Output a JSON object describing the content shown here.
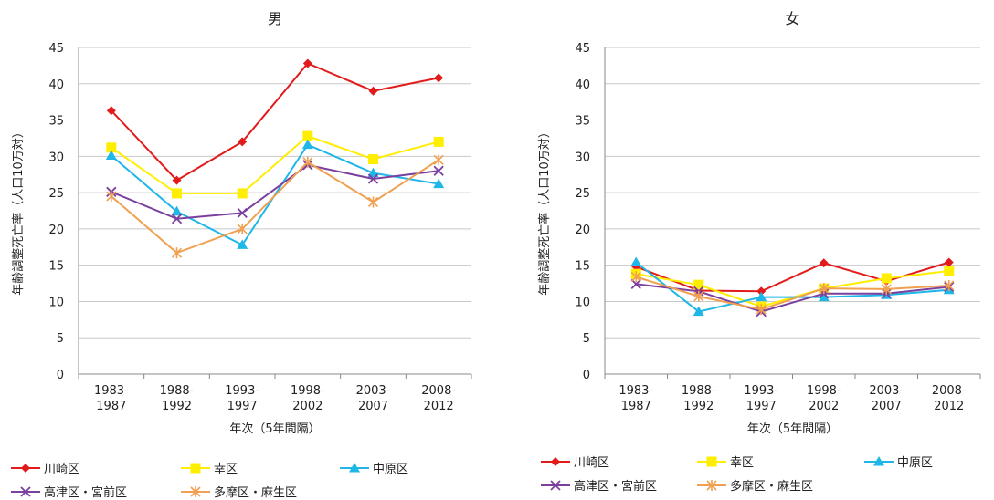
{
  "chart_data": [
    {
      "type": "line",
      "title": "男",
      "xlabel": "年次（5年間隔）",
      "ylabel": "年齢調整死亡率（人口10万対）",
      "categories": [
        [
          "1983-",
          "1987"
        ],
        [
          "1988-",
          "1992"
        ],
        [
          "1993-",
          "1997"
        ],
        [
          "1998-",
          "2002"
        ],
        [
          "2003-",
          "2007"
        ],
        [
          "2008-",
          "2012"
        ]
      ],
      "ylim": [
        0,
        45
      ],
      "yticks": [
        0,
        5,
        10,
        15,
        20,
        25,
        30,
        35,
        40,
        45
      ],
      "grid": true,
      "legend_position": "bottom",
      "series": [
        {
          "name": "川崎区",
          "color": "#e31a1c",
          "marker": "diamond",
          "values": [
            36.3,
            26.7,
            32.0,
            42.8,
            39.0,
            40.8
          ]
        },
        {
          "name": "幸区",
          "color": "#ffee00",
          "marker": "square",
          "values": [
            31.2,
            24.9,
            24.9,
            32.8,
            29.6,
            32.0
          ]
        },
        {
          "name": "中原区",
          "color": "#1fb6e8",
          "marker": "triangle",
          "values": [
            30.1,
            22.4,
            17.8,
            31.6,
            27.7,
            26.2
          ]
        },
        {
          "name": "高津区・宮前区",
          "color": "#7b3f9e",
          "marker": "x",
          "values": [
            25.1,
            21.4,
            22.2,
            28.8,
            26.9,
            28.0
          ]
        },
        {
          "name": "多摩区・麻生区",
          "color": "#f0a050",
          "marker": "star",
          "values": [
            24.5,
            16.7,
            20.0,
            29.2,
            23.7,
            29.5
          ]
        }
      ]
    },
    {
      "type": "line",
      "title": "女",
      "xlabel": "年次（5年間隔）",
      "ylabel": "年齢調整死亡率（人口10万対）",
      "categories": [
        [
          "1983-",
          "1987"
        ],
        [
          "1988-",
          "1992"
        ],
        [
          "1993-",
          "1997"
        ],
        [
          "1998-",
          "2002"
        ],
        [
          "2003-",
          "2007"
        ],
        [
          "2008-",
          "2012"
        ]
      ],
      "ylim": [
        0,
        45
      ],
      "yticks": [
        0,
        5,
        10,
        15,
        20,
        25,
        30,
        35,
        40,
        45
      ],
      "grid": true,
      "legend_position": "bottom",
      "series": [
        {
          "name": "川崎区",
          "color": "#e31a1c",
          "marker": "diamond",
          "values": [
            14.8,
            11.5,
            11.4,
            15.3,
            12.8,
            15.4
          ]
        },
        {
          "name": "幸区",
          "color": "#ffee00",
          "marker": "square",
          "values": [
            13.8,
            12.3,
            9.3,
            11.8,
            13.2,
            14.2
          ]
        },
        {
          "name": "中原区",
          "color": "#1fb6e8",
          "marker": "triangle",
          "values": [
            15.4,
            8.6,
            10.6,
            10.6,
            10.9,
            11.6
          ]
        },
        {
          "name": "高津区・宮前区",
          "color": "#7b3f9e",
          "marker": "x",
          "values": [
            12.4,
            11.4,
            8.6,
            11.1,
            11.1,
            12.0
          ]
        },
        {
          "name": "多摩区・麻生区",
          "color": "#f0a050",
          "marker": "star",
          "values": [
            13.4,
            10.7,
            8.9,
            11.8,
            11.7,
            12.2
          ]
        }
      ]
    }
  ]
}
